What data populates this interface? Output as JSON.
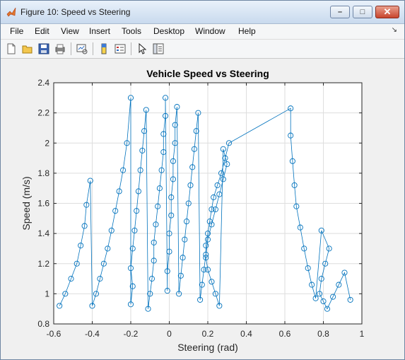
{
  "window": {
    "title": "Figure 10: Speed vs Steering",
    "minimize_glyph": "–",
    "maximize_glyph": "□",
    "close_glyph": "✕"
  },
  "menu": {
    "items": [
      "File",
      "Edit",
      "View",
      "Insert",
      "Tools",
      "Desktop",
      "Window",
      "Help"
    ],
    "overflow_glyph": "↘"
  },
  "toolbar": {
    "icons": [
      "new-figure-icon",
      "open-file-icon",
      "save-icon",
      "print-icon",
      "link-plot-icon",
      "colorbar-icon",
      "legend-icon",
      "pointer-icon",
      "property-inspector-icon"
    ]
  },
  "colors": {
    "series": "#0072bd",
    "grid": "#dedede",
    "axes_bg": "#ffffff",
    "figure_bg": "#f0f0f0",
    "close_red": "#c8452c"
  },
  "chart_data": {
    "type": "line",
    "title": "Vehicle Speed vs Steering",
    "xlabel": "Steering (rad)",
    "ylabel": "Speed (m/s)",
    "xlim": [
      -0.6,
      1.0
    ],
    "ylim": [
      0.8,
      2.4
    ],
    "xticks": [
      -0.6,
      -0.4,
      -0.2,
      0,
      0.2,
      0.4,
      0.6,
      0.8,
      1
    ],
    "xtick_labels": [
      "-0.6",
      "-0.4",
      "-0.2",
      "0",
      "0.2",
      "0.4",
      "0.6",
      "0.8",
      "1"
    ],
    "yticks": [
      0.8,
      1.0,
      1.2,
      1.4,
      1.6,
      1.8,
      2.0,
      2.2,
      2.4
    ],
    "ytick_labels": [
      "0.8",
      "1",
      "1.2",
      "1.4",
      "1.6",
      "1.8",
      "2",
      "2.2",
      "2.4"
    ],
    "grid": true,
    "marker": "circle",
    "series": [
      {
        "x": [
          -0.57,
          -0.54,
          -0.51,
          -0.48,
          -0.46,
          -0.44,
          -0.43,
          -0.41,
          -0.4,
          -0.38,
          -0.36,
          -0.34,
          -0.32,
          -0.3,
          -0.28,
          -0.26,
          -0.24,
          -0.22,
          -0.2,
          -0.2,
          -0.19,
          -0.2,
          -0.19,
          -0.18,
          -0.17,
          -0.16,
          -0.15,
          -0.14,
          -0.13,
          -0.12,
          -0.11,
          -0.1,
          -0.09,
          -0.08,
          -0.08,
          -0.07,
          -0.06,
          -0.05,
          -0.04,
          -0.03,
          -0.03,
          -0.02,
          -0.02,
          -0.01,
          -0.01,
          0,
          0,
          0.01,
          0.01,
          0.02,
          0.02,
          0.03,
          0.03,
          0.04,
          0.05,
          0.06,
          0.07,
          0.08,
          0.09,
          0.1,
          0.11,
          0.12,
          0.13,
          0.14,
          0.15,
          0.16,
          0.17,
          0.18,
          0.19,
          0.2,
          0.22,
          0.24,
          0.26,
          0.28,
          0.3,
          0.28,
          0.26,
          0.24,
          0.22,
          0.2,
          0.19,
          0.19,
          0.2,
          0.21,
          0.22,
          0.23,
          0.25,
          0.27,
          0.29,
          0.31,
          0.63,
          0.63,
          0.64,
          0.65,
          0.66,
          0.68,
          0.7,
          0.72,
          0.74,
          0.76,
          0.79,
          0.83,
          0.81,
          0.79,
          0.78,
          0.8,
          0.82,
          0.85,
          0.88,
          0.91,
          0.94
        ],
        "y": [
          0.92,
          1.0,
          1.1,
          1.2,
          1.32,
          1.45,
          1.59,
          1.75,
          0.92,
          1.0,
          1.1,
          1.2,
          1.3,
          1.42,
          1.55,
          1.68,
          1.82,
          2.0,
          2.3,
          0.93,
          1.05,
          1.17,
          1.3,
          1.42,
          1.55,
          1.68,
          1.82,
          1.95,
          2.08,
          2.22,
          0.9,
          1.0,
          1.1,
          1.22,
          1.34,
          1.46,
          1.58,
          1.7,
          1.82,
          1.94,
          2.06,
          2.18,
          2.3,
          1.02,
          1.15,
          1.28,
          1.4,
          1.52,
          1.64,
          1.76,
          1.88,
          2.0,
          2.12,
          2.24,
          1.0,
          1.12,
          1.24,
          1.36,
          1.48,
          1.6,
          1.72,
          1.84,
          1.96,
          2.08,
          2.2,
          0.96,
          1.06,
          1.16,
          1.26,
          1.36,
          1.46,
          1.56,
          1.66,
          1.76,
          1.86,
          1.96,
          0.92,
          1.0,
          1.08,
          1.16,
          1.24,
          1.32,
          1.4,
          1.48,
          1.56,
          1.64,
          1.72,
          1.8,
          1.9,
          2.0,
          2.23,
          2.05,
          1.88,
          1.72,
          1.58,
          1.44,
          1.3,
          1.17,
          1.06,
          0.97,
          1.42,
          1.3,
          1.2,
          1.1,
          1.0,
          0.95,
          0.9,
          0.98,
          1.06,
          1.14,
          0.96
        ]
      }
    ]
  }
}
